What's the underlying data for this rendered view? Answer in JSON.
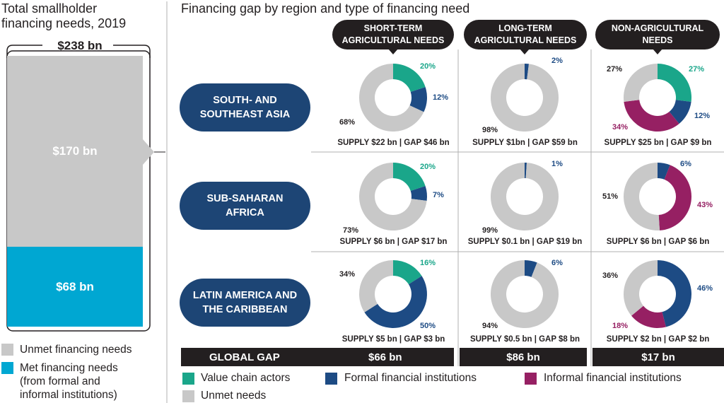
{
  "left_panel": {
    "title_line1": "Total smallholder",
    "title_line2": "financing needs, 2019",
    "total": "$238 bn",
    "unmet_label": "$170 bn",
    "met_label": "$68 bn",
    "legend_unmet": "Unmet financing needs",
    "legend_met_1": "Met financing needs",
    "legend_met_2": "(from formal and",
    "legend_met_3": "informal institutions)"
  },
  "right_title": "Financing gap by region and type of financing need",
  "columns": [
    {
      "line1": "SHORT-TERM",
      "line2": "AGRICULTURAL NEEDS"
    },
    {
      "line1": "LONG-TERM",
      "line2": "AGRICULTURAL NEEDS"
    },
    {
      "line1": "NON-AGRICULTURAL",
      "line2": "NEEDS"
    }
  ],
  "regions": [
    {
      "line1": "SOUTH- AND",
      "line2": "SOUTHEAST ASIA"
    },
    {
      "line1": "SUB-SAHARAN",
      "line2": "AFRICA"
    },
    {
      "line1": "LATIN AMERICA AND",
      "line2": "THE CARIBBEAN"
    }
  ],
  "global_gap": {
    "label": "GLOBAL GAP",
    "values": [
      "$66 bn",
      "$86 bn",
      "$17 bn"
    ]
  },
  "legend": {
    "value_chain": "Value chain actors",
    "formal": "Formal financial institutions",
    "informal": "Informal financial institutions",
    "unmet": "Unmet needs"
  },
  "colors": {
    "value_chain": "#1aa68a",
    "formal": "#1d4b84",
    "informal": "#962063",
    "unmet": "#c8c8c8",
    "met_bar": "#00a7d2",
    "dark": "#231f20",
    "region_pill": "#1d4575"
  },
  "chart_data": {
    "type": "pie",
    "stacked_bar": {
      "total": 238,
      "unmet": 170,
      "met": 68,
      "unit": "bn"
    },
    "donuts": [
      {
        "region": "SOUTH- AND SOUTHEAST ASIA",
        "need": "SHORT-TERM AGRICULTURAL NEEDS",
        "slices": [
          {
            "k": "value_chain",
            "v": 20
          },
          {
            "k": "formal",
            "v": 12
          },
          {
            "k": "informal",
            "v": 0
          },
          {
            "k": "unmet",
            "v": 68
          }
        ],
        "labels": [
          "20%",
          "12%",
          "68%"
        ],
        "supply": "SUPPLY $22 bn | GAP $46 bn"
      },
      {
        "region": "SOUTH- AND SOUTHEAST ASIA",
        "need": "LONG-TERM AGRICULTURAL NEEDS",
        "slices": [
          {
            "k": "value_chain",
            "v": 0
          },
          {
            "k": "formal",
            "v": 2
          },
          {
            "k": "informal",
            "v": 0
          },
          {
            "k": "unmet",
            "v": 98
          }
        ],
        "labels": [
          "2%",
          "98%"
        ],
        "supply": "SUPPLY $1bn | GAP $59 bn"
      },
      {
        "region": "SOUTH- AND SOUTHEAST ASIA",
        "need": "NON-AGRICULTURAL NEEDS",
        "slices": [
          {
            "k": "value_chain",
            "v": 27
          },
          {
            "k": "formal",
            "v": 12
          },
          {
            "k": "informal",
            "v": 34
          },
          {
            "k": "unmet",
            "v": 27
          }
        ],
        "labels": [
          "27%",
          "12%",
          "34%",
          "27%"
        ],
        "supply": "SUPPLY $25 bn | GAP $9 bn"
      },
      {
        "region": "SUB-SAHARAN AFRICA",
        "need": "SHORT-TERM AGRICULTURAL NEEDS",
        "slices": [
          {
            "k": "value_chain",
            "v": 20
          },
          {
            "k": "formal",
            "v": 7
          },
          {
            "k": "informal",
            "v": 0
          },
          {
            "k": "unmet",
            "v": 73
          }
        ],
        "labels": [
          "20%",
          "7%",
          "73%"
        ],
        "supply": "SUPPLY $6 bn | GAP $17 bn"
      },
      {
        "region": "SUB-SAHARAN AFRICA",
        "need": "LONG-TERM AGRICULTURAL NEEDS",
        "slices": [
          {
            "k": "value_chain",
            "v": 0
          },
          {
            "k": "formal",
            "v": 1
          },
          {
            "k": "informal",
            "v": 0
          },
          {
            "k": "unmet",
            "v": 99
          }
        ],
        "labels": [
          "1%",
          "99%"
        ],
        "supply": "SUPPLY $0.1 bn | GAP $19 bn"
      },
      {
        "region": "SUB-SAHARAN AFRICA",
        "need": "NON-AGRICULTURAL NEEDS",
        "slices": [
          {
            "k": "value_chain",
            "v": 0
          },
          {
            "k": "formal",
            "v": 6
          },
          {
            "k": "informal",
            "v": 43
          },
          {
            "k": "unmet",
            "v": 51
          }
        ],
        "labels": [
          "6%",
          "43%",
          "51%"
        ],
        "supply": "SUPPLY $6 bn | GAP $6 bn"
      },
      {
        "region": "LATIN AMERICA AND THE CARIBBEAN",
        "need": "SHORT-TERM AGRICULTURAL NEEDS",
        "slices": [
          {
            "k": "value_chain",
            "v": 16
          },
          {
            "k": "formal",
            "v": 50
          },
          {
            "k": "informal",
            "v": 0
          },
          {
            "k": "unmet",
            "v": 34
          }
        ],
        "labels": [
          "16%",
          "50%",
          "34%"
        ],
        "supply": "SUPPLY $5 bn | GAP $3 bn"
      },
      {
        "region": "LATIN AMERICA AND THE CARIBBEAN",
        "need": "LONG-TERM AGRICULTURAL NEEDS",
        "slices": [
          {
            "k": "value_chain",
            "v": 0
          },
          {
            "k": "formal",
            "v": 6
          },
          {
            "k": "informal",
            "v": 0
          },
          {
            "k": "unmet",
            "v": 94
          }
        ],
        "labels": [
          "6%",
          "94%"
        ],
        "supply": "SUPPLY $0.5 bn | GAP $8 bn"
      },
      {
        "region": "LATIN AMERICA AND THE CARIBBEAN",
        "need": "NON-AGRICULTURAL NEEDS",
        "slices": [
          {
            "k": "value_chain",
            "v": 0
          },
          {
            "k": "formal",
            "v": 46
          },
          {
            "k": "informal",
            "v": 18
          },
          {
            "k": "unmet",
            "v": 36
          }
        ],
        "labels": [
          "46%",
          "18%",
          "36%"
        ],
        "supply": "SUPPLY $2 bn | GAP $2 bn"
      }
    ]
  }
}
